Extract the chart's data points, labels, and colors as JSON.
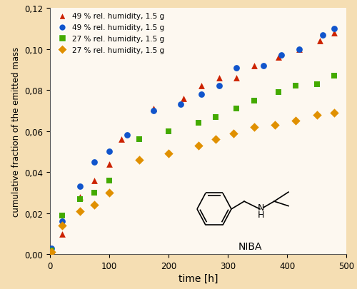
{
  "background_color": "#f5deb3",
  "plot_bg_color": "#fdf8f0",
  "xlabel": "time [h]",
  "ylabel": "cumulative fraction of the emitted mass",
  "xlim": [
    0,
    500
  ],
  "ylim": [
    0,
    0.12
  ],
  "yticks": [
    0.0,
    0.02,
    0.04,
    0.06,
    0.08,
    0.1,
    0.12
  ],
  "xticks": [
    0,
    100,
    200,
    300,
    400,
    500
  ],
  "series": [
    {
      "label": "49 % rel. humidity, 1.5 g",
      "color": "#cc2200",
      "marker": "^",
      "x": [
        3,
        20,
        50,
        75,
        100,
        120,
        175,
        225,
        255,
        285,
        315,
        345,
        385,
        420,
        455,
        480
      ],
      "y": [
        0.002,
        0.01,
        0.028,
        0.036,
        0.044,
        0.056,
        0.071,
        0.076,
        0.082,
        0.086,
        0.086,
        0.092,
        0.096,
        0.1,
        0.104,
        0.108
      ]
    },
    {
      "label": "49 % rel. humidity, 1.5 g",
      "color": "#1155cc",
      "marker": "o",
      "x": [
        3,
        20,
        50,
        75,
        100,
        130,
        175,
        220,
        255,
        285,
        315,
        360,
        390,
        420,
        460,
        480
      ],
      "y": [
        0.003,
        0.016,
        0.033,
        0.045,
        0.05,
        0.058,
        0.07,
        0.073,
        0.078,
        0.082,
        0.091,
        0.092,
        0.097,
        0.1,
        0.107,
        0.11
      ]
    },
    {
      "label": "27 % rel. humidity, 1.5 g",
      "color": "#44aa00",
      "marker": "s",
      "x": [
        3,
        20,
        50,
        75,
        100,
        150,
        200,
        250,
        280,
        315,
        345,
        385,
        415,
        450,
        480
      ],
      "y": [
        0.002,
        0.019,
        0.027,
        0.03,
        0.036,
        0.056,
        0.06,
        0.064,
        0.067,
        0.071,
        0.075,
        0.079,
        0.082,
        0.083,
        0.087
      ]
    },
    {
      "label": "27 % rel. humidity, 1.5 g",
      "color": "#e09000",
      "marker": "D",
      "x": [
        3,
        20,
        50,
        75,
        100,
        150,
        200,
        250,
        280,
        310,
        345,
        380,
        415,
        450,
        480
      ],
      "y": [
        0.001,
        0.014,
        0.021,
        0.024,
        0.03,
        0.046,
        0.049,
        0.053,
        0.056,
        0.059,
        0.062,
        0.063,
        0.065,
        0.068,
        0.069
      ]
    }
  ]
}
